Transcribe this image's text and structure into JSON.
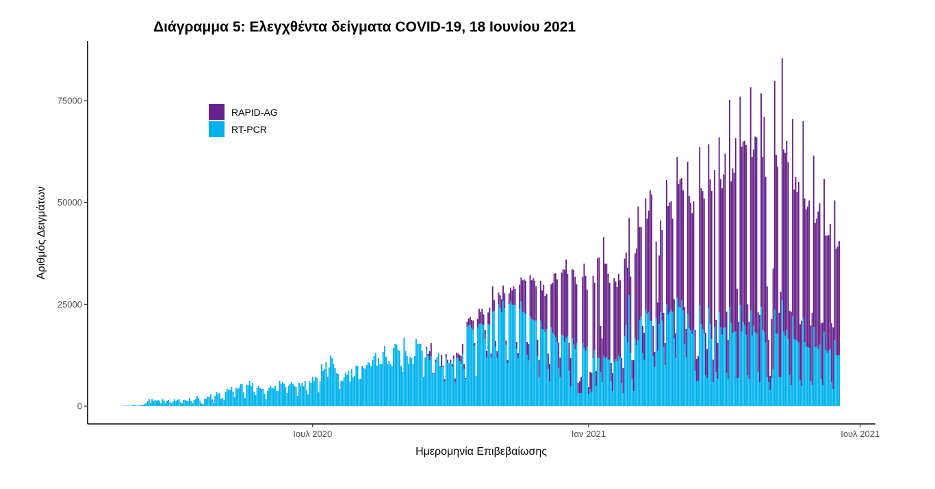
{
  "chart_data": {
    "type": "bar",
    "stacked": true,
    "title": "Διάγραμμα 5: Ελεγχθέντα δείγματα COVID-19, 18 Ιουνίου 2021",
    "xlabel": "Ημερομηνία Επιβεβαίωσης",
    "ylabel": "Αριθμός Δειγμάτων",
    "x_start_date": "2020-02-26",
    "x_end_date": "2021-06-17",
    "x_ticks": [
      {
        "date": "2020-07-01",
        "label": "Ιουλ 2020"
      },
      {
        "date": "2021-01-01",
        "label": "Ιαν 2021"
      },
      {
        "date": "2021-07-01",
        "label": "Ιουλ 2021"
      }
    ],
    "ylim": [
      0,
      87000
    ],
    "y_ticks": [
      0,
      25000,
      50000,
      75000
    ],
    "y_tick_labels": [
      "0",
      "25000",
      "50000",
      "75000"
    ],
    "grid": false,
    "legend": {
      "placement": "top-left",
      "entries": [
        "RAPID-AG",
        "RT-PCR"
      ]
    },
    "colors": {
      "RAPID-AG": "#68228B",
      "RT-PCR": "#00B2EE"
    },
    "series": [
      {
        "name": "RT-PCR",
        "values": [
          100,
          100,
          100,
          100,
          100,
          100,
          200,
          300,
          200,
          100,
          100,
          300,
          300,
          300,
          500,
          700,
          1200,
          1700,
          800,
          1700,
          1300,
          1500,
          1300,
          1500,
          1300,
          800,
          1700,
          1300,
          700,
          1300,
          1500,
          1000,
          700,
          1200,
          1700,
          1300,
          1500,
          1700,
          1000,
          700,
          1500,
          1500,
          1300,
          1300,
          2000,
          1200,
          800,
          1500,
          1700,
          2500,
          2000,
          1300,
          700,
          500,
          1800,
          1800,
          2400,
          2200,
          2900,
          1700,
          800,
          2500,
          3500,
          3000,
          3200,
          1800,
          2000,
          1500,
          3500,
          4200,
          4000,
          4000,
          4700,
          3500,
          2200,
          4500,
          4200,
          4500,
          5400,
          5500,
          3400,
          2000,
          5200,
          5200,
          6200,
          4900,
          5700,
          3500,
          2700,
          4400,
          5000,
          4400,
          4200,
          4200,
          3000,
          1700,
          3700,
          4500,
          5000,
          4500,
          4400,
          5000,
          3700,
          3700,
          6200,
          5400,
          5900,
          5500,
          4700,
          3200,
          5000,
          5400,
          5900,
          5400,
          5000,
          4700,
          2500,
          5700,
          5000,
          5700,
          4900,
          6200,
          3900,
          2900,
          6200,
          5700,
          7200,
          6200,
          7200,
          6900,
          3400,
          6100,
          10300,
          8700,
          9100,
          10800,
          7200,
          9500,
          12400,
          11800,
          10300,
          9400,
          8100,
          7900,
          4200,
          6200,
          6200,
          7100,
          8100,
          7700,
          8700,
          6000,
          9100,
          7100,
          7400,
          9900,
          9900,
          6600,
          6700,
          9800,
          9400,
          9200,
          10100,
          10800,
          10600,
          9800,
          11300,
          12300,
          13100,
          9900,
          11800,
          10300,
          10300,
          13300,
          14800,
          12100,
          10300,
          11100,
          10300,
          9800,
          14300,
          15300,
          15100,
          13800,
          13600,
          9800,
          8400,
          16800,
          13600,
          12300,
          10400,
          12100,
          11800,
          10300,
          12300,
          16500,
          15300,
          15300,
          15300,
          13500,
          7100,
          11800,
          14100,
          12300,
          11300,
          12300,
          8100,
          7900,
          10800,
          12100,
          13100,
          9900,
          9600,
          9600,
          6100,
          11900,
          10600,
          10600,
          10600,
          9600,
          11600,
          5900,
          11900,
          11800,
          11100,
          10400,
          12900,
          9100,
          6600,
          19500,
          20000,
          19800,
          19200,
          18700,
          14800,
          7400,
          19300,
          20200,
          20300,
          20000,
          20000,
          16500,
          11900,
          20200,
          20000,
          11900,
          23200,
          23400,
          14600,
          11900,
          25000,
          24000,
          23000,
          25900,
          24000,
          15000,
          10600,
          25000,
          25600,
          24900,
          24900,
          24900,
          14100,
          11800,
          23900,
          25700,
          23200,
          23000,
          22700,
          12600,
          11200,
          22000,
          21400,
          21200,
          21000,
          21000,
          12300,
          7100,
          21000,
          19000,
          18800,
          18200,
          19000,
          9100,
          6100,
          19300,
          18000,
          17500,
          17000,
          15600,
          9400,
          7100,
          17500,
          17200,
          15800,
          16800,
          17200,
          8600,
          4900,
          16600,
          15100,
          14000,
          15500,
          3200,
          3200,
          3200,
          15500,
          14300,
          13500,
          14600,
          3000,
          4200,
          3400,
          11800,
          13800,
          4900,
          11800,
          11800,
          8400,
          5900,
          12400,
          11800,
          12100,
          11400,
          11400,
          6100,
          3700,
          10900,
          11600,
          11100,
          12400,
          11900,
          5700,
          3200,
          17200,
          20000,
          15600,
          27200,
          13100,
          6600,
          3700,
          16600,
          15000,
          16300,
          21200,
          21900,
          13100,
          11300,
          23700,
          22700,
          23200,
          20900,
          20900,
          12300,
          9600,
          21500,
          13600,
          20200,
          23000,
          21000,
          14600,
          10100,
          25000,
          22400,
          23000,
          23600,
          23200,
          16600,
          11800,
          26600,
          24400,
          24200,
          26000,
          23500,
          15300,
          12000,
          22700,
          19200,
          18700,
          17700,
          18700,
          8600,
          6100,
          6200,
          24600,
          20200,
          18900,
          17700,
          7600,
          6900,
          24000,
          20200,
          16500,
          5900,
          19500,
          8400,
          6700,
          23000,
          19300,
          17500,
          19200,
          19300,
          8200,
          6600,
          24400,
          20400,
          18000,
          18300,
          18300,
          6900,
          6900,
          24900,
          18300,
          20700,
          19900,
          17500,
          7600,
          6600,
          23500,
          17300,
          19700,
          18200,
          17800,
          8400,
          5900,
          24400,
          18700,
          18200,
          15600,
          7200,
          5900,
          3900,
          6900,
          9100,
          23700,
          17800,
          17800,
          7200,
          7100,
          26000,
          18300,
          17300,
          18700,
          16500,
          7700,
          5200,
          22200,
          16500,
          16300,
          16000,
          15600,
          6400,
          4900,
          21700,
          15800,
          14500,
          14500,
          14300,
          6200,
          5200,
          19500,
          14500,
          14600,
          14000,
          15100,
          6700,
          5200,
          18300,
          13800,
          13100,
          13600,
          14100,
          5900,
          4200,
          16300,
          12600,
          12400,
          12600
        ]
      },
      {
        "name": "RAPID-AG",
        "values": [
          0,
          0,
          0,
          0,
          0,
          0,
          0,
          0,
          0,
          0,
          0,
          0,
          0,
          0,
          0,
          0,
          0,
          0,
          0,
          0,
          0,
          0,
          0,
          0,
          0,
          0,
          0,
          0,
          0,
          0,
          0,
          0,
          0,
          0,
          0,
          0,
          0,
          0,
          0,
          0,
          0,
          0,
          0,
          0,
          0,
          0,
          0,
          0,
          0,
          0,
          0,
          0,
          0,
          0,
          0,
          0,
          0,
          0,
          0,
          0,
          0,
          0,
          0,
          0,
          0,
          0,
          0,
          0,
          0,
          0,
          0,
          0,
          0,
          0,
          0,
          0,
          0,
          0,
          0,
          0,
          0,
          0,
          0,
          0,
          0,
          0,
          0,
          0,
          0,
          0,
          0,
          0,
          0,
          0,
          0,
          0,
          0,
          0,
          0,
          0,
          0,
          0,
          0,
          0,
          0,
          0,
          0,
          0,
          0,
          0,
          0,
          0,
          0,
          0,
          0,
          0,
          0,
          0,
          0,
          0,
          0,
          0,
          0,
          0,
          0,
          0,
          0,
          0,
          0,
          0,
          0,
          0,
          0,
          0,
          0,
          0,
          0,
          0,
          0,
          0,
          0,
          0,
          0,
          0,
          0,
          0,
          0,
          0,
          0,
          0,
          0,
          0,
          0,
          0,
          0,
          0,
          0,
          0,
          0,
          0,
          0,
          0,
          0,
          0,
          0,
          0,
          0,
          0,
          0,
          0,
          0,
          0,
          0,
          0,
          0,
          0,
          0,
          0,
          0,
          0,
          0,
          0,
          0,
          0,
          0,
          0,
          0,
          0,
          0,
          0,
          0,
          0,
          0,
          0,
          0,
          0,
          0,
          0,
          0,
          100,
          100,
          100,
          400,
          500,
          2200,
          3200,
          100,
          200,
          600,
          0,
          0,
          0,
          3000,
          300,
          500,
          900,
          800,
          0,
          800,
          800,
          800,
          900,
          1200,
          1100,
          1500,
          1900,
          2400,
          1200,
          300,
          1200,
          1500,
          2100,
          2000,
          2300,
          700,
          0,
          2100,
          3700,
          2900,
          3900,
          2500,
          2200,
          1700,
          2800,
          4200,
          1000,
          6200,
          2700,
          1400,
          1600,
          2900,
          3200,
          3200,
          3700,
          3700,
          1100,
          700,
          2700,
          3500,
          3500,
          4500,
          3900,
          1700,
          1300,
          5900,
          5900,
          7700,
          8100,
          8100,
          3200,
          4100,
          10100,
          9500,
          10200,
          9800,
          8400,
          4000,
          4200,
          9800,
          9400,
          11000,
          8900,
          8600,
          3800,
          4300,
          10600,
          12300,
          15000,
          15600,
          15500,
          6200,
          4800,
          15300,
          16400,
          17700,
          19200,
          15300,
          6900,
          6900,
          17000,
          18400,
          17800,
          14400,
          2500,
          2900,
          4000,
          16300,
          20700,
          18500,
          14000,
          1700,
          4200,
          4800,
          20200,
          16500,
          3700,
          24500,
          24700,
          11300,
          10700,
          29100,
          23200,
          22900,
          21100,
          18900,
          4500,
          4400,
          20500,
          19000,
          18200,
          20100,
          19000,
          6100,
          6200,
          19000,
          17700,
          18400,
          19000,
          18700,
          4700,
          7600,
          20900,
          23700,
          32700,
          22800,
          22100,
          6600,
          6700,
          27300,
          23300,
          24800,
          32100,
          31100,
          7400,
          3700,
          18900,
          11900,
          16800,
          22600,
          22200,
          8300,
          5400,
          30500,
          26700,
          27000,
          26700,
          22800,
          9600,
          6100,
          34600,
          30100,
          31500,
          30000,
          29500,
          9100,
          7000,
          37300,
          32400,
          31200,
          29700,
          31600,
          10100,
          5500,
          6100,
          39000,
          33300,
          33900,
          33300,
          10400,
          7100,
          40300,
          35500,
          36300,
          5500,
          38500,
          12800,
          8800,
          43000,
          36500,
          36000,
          37700,
          42700,
          15000,
          9700,
          50800,
          34800,
          40400,
          39000,
          47500,
          21900,
          13800,
          51100,
          45400,
          44300,
          45200,
          46600,
          17400,
          14100,
          54800,
          43900,
          43300,
          48000,
          48200,
          14600,
          16500,
          52400,
          42500,
          52800,
          40700,
          22200,
          10400,
          3500,
          14500,
          24700,
          56200,
          43900,
          41000,
          15700,
          21000,
          59400,
          44700,
          44900,
          46400,
          43400,
          15700,
          18000,
          48300,
          36700,
          40000,
          36600,
          39400,
          13700,
          16100,
          48300,
          35200,
          33800,
          34500,
          36200,
          13600,
          17700,
          42000,
          30500,
          31400,
          33800,
          34700,
          13700,
          15300,
          37500,
          28100,
          28800,
          28400,
          30600,
          14500,
          15100,
          34200,
          26100,
          26800,
          27900
        ]
      }
    ]
  }
}
